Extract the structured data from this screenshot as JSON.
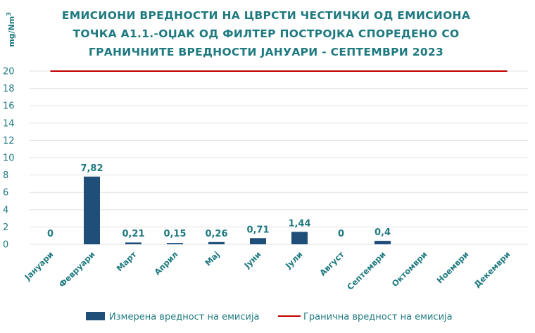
{
  "chart_data": {
    "type": "bar",
    "title_lines": [
      "ЕМИСИОНИ ВРЕДНОСТИ НА ЦВРСТИ ЧЕСТИЧКИ ОД ЕМИСИОНА",
      "ТОЧКА А1.1.-ОЏАК ОД ФИЛТЕР ПОСТРОЈКА СПОРЕДЕНО СО",
      "ГРАНИЧНИТЕ ВРЕДНОСТИ ЈАНУАРИ - СЕПТЕМВРИ 2023"
    ],
    "ylabel": "mg/Nm",
    "ylabel_superscript": "3",
    "ylim": [
      0,
      20
    ],
    "yticks": [
      "0",
      "2",
      "4",
      "6",
      "8",
      "10",
      "12",
      "14",
      "16",
      "18",
      "20"
    ],
    "grid": true,
    "legend_placement": "bottom",
    "categories": [
      "Јануари",
      "Февруари",
      "Март",
      "Април",
      "Мај",
      "Јуни",
      "Јули",
      "Август",
      "Септември",
      "Октомври",
      "Ноември",
      "Декември"
    ],
    "series": [
      {
        "name": "Измерена вредност на емисија",
        "type": "bar",
        "color": "#1f4e79",
        "values": [
          0,
          7.82,
          0.21,
          0.15,
          0.26,
          0.71,
          1.44,
          0,
          0.4,
          null,
          null,
          null
        ],
        "labels": [
          "0",
          "7,82",
          "0,21",
          "0,15",
          "0,26",
          "0,71",
          "1,44",
          "0",
          "0,4",
          "",
          "",
          ""
        ]
      },
      {
        "name": "Гранична вредност на емисија",
        "type": "line",
        "color": "#c00000",
        "value": 20
      }
    ],
    "colors": {
      "text": "#1f7a80",
      "grid": "#e2e2e2"
    }
  }
}
